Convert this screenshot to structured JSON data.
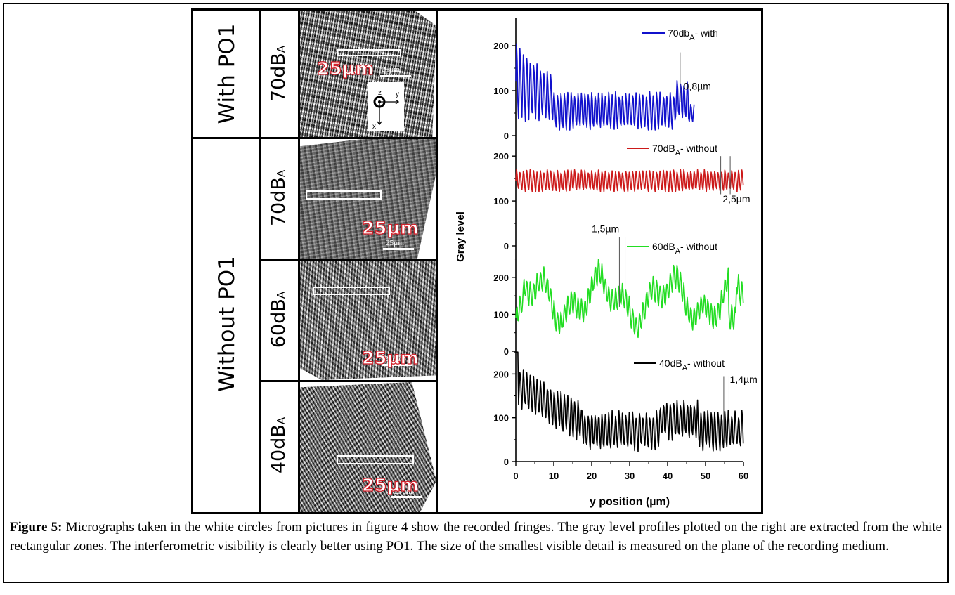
{
  "figure": {
    "group_labels": {
      "with": "With PO1",
      "without": "Without PO1"
    },
    "rows": [
      {
        "level": "70dB",
        "sub": "A"
      },
      {
        "level": "70dB",
        "sub": "A"
      },
      {
        "level": "60dB",
        "sub": "A"
      },
      {
        "level": "40dB",
        "sub": "A"
      }
    ],
    "micrographs": [
      {
        "big_scale": "25µm",
        "small_scale": "25µm"
      },
      {
        "big_scale": "25µm",
        "small_scale": "25µm"
      },
      {
        "big_scale": "25µm",
        "small_scale": "25µm"
      },
      {
        "big_scale": "25µm",
        "small_scale": "25µm"
      }
    ],
    "axes_glyph": {
      "z": "z",
      "y": "y",
      "x": "x"
    }
  },
  "chart_data": {
    "type": "line",
    "xlabel": "y position (µm)",
    "ylabel": "Gray level",
    "x_ticks": [
      0,
      10,
      20,
      30,
      40,
      50,
      60
    ],
    "y_ticks": [
      0,
      100,
      200
    ],
    "xlim": [
      0,
      60
    ],
    "series": [
      {
        "name_main": "70db",
        "name_sub": "A",
        "name_tail": "- with",
        "color": "#1111cc",
        "annotation": "0,8µm",
        "x_end": 47,
        "ylim": [
          0,
          250
        ]
      },
      {
        "name_main": "70dB",
        "name_sub": "A",
        "name_tail": "- without",
        "color": "#cc1a1a",
        "annotation": "2,5µm",
        "x_end": 60,
        "ylim": [
          0,
          230
        ]
      },
      {
        "name_main": "60dB",
        "name_sub": "A",
        "name_tail": "- without",
        "color": "#22dd22",
        "annotation": "1,5µm",
        "x_end": 60,
        "ylim": [
          0,
          310
        ]
      },
      {
        "name_main": "40dB",
        "name_sub": "A",
        "name_tail": "- without",
        "color": "#000000",
        "annotation": "1,4µm",
        "x_end": 60,
        "ylim": [
          0,
          260
        ]
      }
    ]
  },
  "caption": {
    "label": "Figure 5:",
    "text": " Micrographs taken in the white circles from pictures in figure 4 show the recorded fringes. The gray level profiles plotted on the right are extracted from the white rectangular zones. The interferometric visibility is clearly better using PO1. The size of the smallest visible detail is measured on the plane of the recording medium."
  }
}
